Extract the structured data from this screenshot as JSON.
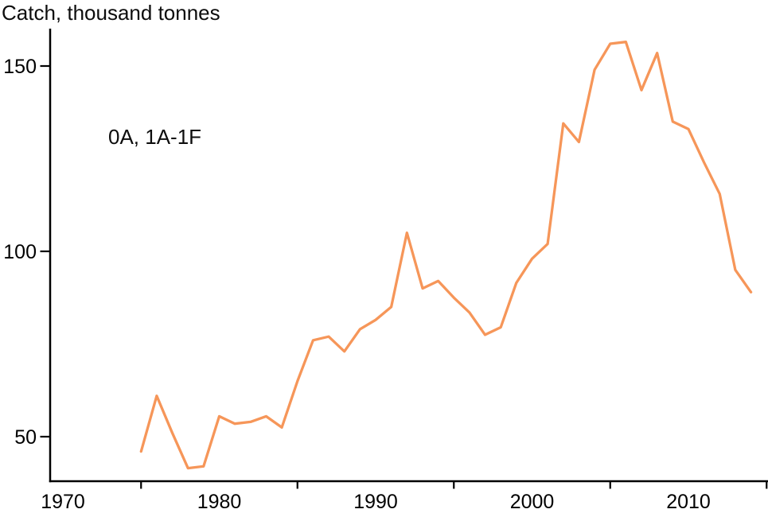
{
  "chart_data": {
    "type": "line",
    "title": "Catch, thousand tonnes",
    "annotation": "0A, 1A-1F",
    "xlabel": "",
    "ylabel": "Catch, thousand tonnes",
    "grid": false,
    "legend": false,
    "axis_color": "#000000",
    "text_color": "#000000",
    "background_color": "#ffffff",
    "x_axis": {
      "labeled_years": [
        1970,
        1980,
        1990,
        2000,
        2010
      ],
      "minor_ticks": [
        1975,
        1985,
        1995,
        2005,
        2015
      ],
      "range": [
        1969,
        2015
      ]
    },
    "y_axis": {
      "ticks": [
        50,
        100,
        150
      ],
      "range": [
        38,
        160
      ]
    },
    "series": [
      {
        "name": "Catch 0A, 1A-1F",
        "color": "#F69659",
        "x": [
          1975,
          1976,
          1977,
          1978,
          1979,
          1980,
          1981,
          1982,
          1983,
          1984,
          1985,
          1986,
          1987,
          1988,
          1989,
          1990,
          1991,
          1992,
          1993,
          1994,
          1995,
          1996,
          1997,
          1998,
          1999,
          2000,
          2001,
          2002,
          2003,
          2004,
          2005,
          2006,
          2007,
          2008,
          2009,
          2010,
          2011,
          2012,
          2013,
          2014
        ],
        "values": [
          46,
          61,
          51,
          41.5,
          42,
          55.5,
          53.5,
          54,
          55.5,
          52.5,
          65,
          76,
          77,
          73,
          79,
          81.5,
          85,
          105,
          90,
          92,
          87.5,
          83.5,
          77.5,
          79.5,
          91.5,
          98,
          102,
          134.5,
          129.5,
          149,
          156,
          156.5,
          143.5,
          153.5,
          135,
          133,
          124,
          115.5,
          95,
          89
        ]
      }
    ]
  }
}
